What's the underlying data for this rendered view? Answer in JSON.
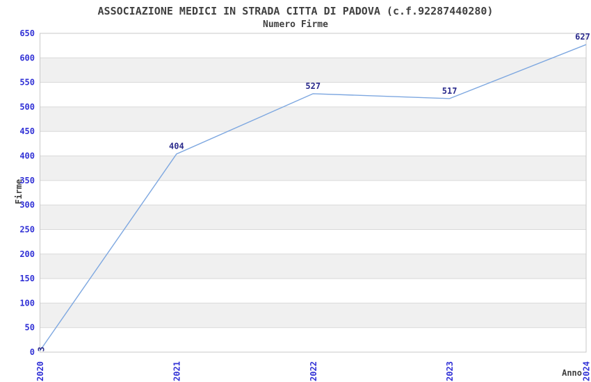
{
  "chart_data": {
    "type": "line",
    "title": "ASSOCIAZIONE MEDICI IN STRADA CITTA DI PADOVA (c.f.92287440280)",
    "subtitle": "Numero Firme",
    "xlabel": "Anno",
    "ylabel": "Firme",
    "categories": [
      "2020",
      "2021",
      "2022",
      "2023",
      "2024"
    ],
    "series": [
      {
        "name": "Numero Firme",
        "values": [
          3,
          404,
          527,
          517,
          627
        ]
      }
    ],
    "point_labels": [
      "3",
      "404",
      "527",
      "517",
      "627"
    ],
    "ylim": [
      0,
      650
    ],
    "ytick_step": 50,
    "grid": "horizontal",
    "legend": "none",
    "colors": {
      "line": "#7da7e0",
      "tick_label": "#3232d6",
      "point_label": "#2b2b8c",
      "title_text": "#404040",
      "band_alt": "#f0f0f0",
      "band_main": "#ffffff",
      "gridline": "#d9d9d9",
      "plot_border": "#c9c9c9",
      "background": "#ffffff"
    }
  }
}
